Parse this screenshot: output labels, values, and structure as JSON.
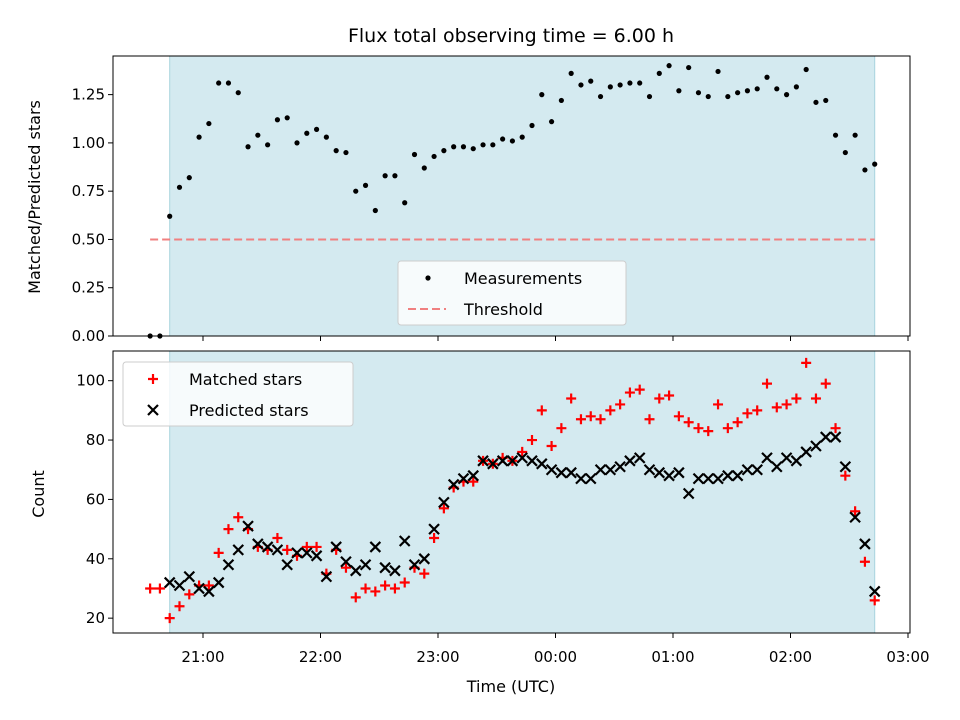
{
  "chart_data": [
    {
      "type": "scatter",
      "title": "Flux total observing time = 6.00 h",
      "xlabel": "",
      "ylabel": "Matched/Predicted stars",
      "ylim": [
        0,
        1.45
      ],
      "yticks": [
        "0.00",
        "0.25",
        "0.50",
        "0.75",
        "1.00",
        "1.25"
      ],
      "shaded_span": {
        "start": "20:43",
        "end": "02:43",
        "color": "#d4eaf0"
      },
      "legend": {
        "placement": "lower center",
        "entries": [
          "Measurements",
          "Threshold"
        ]
      },
      "series": [
        {
          "name": "Measurements",
          "marker": "dot",
          "color": "#000000",
          "points": [
            [
              "20:33",
              0.0
            ],
            [
              "20:38",
              0.0
            ],
            [
              "20:43",
              0.62
            ],
            [
              "20:48",
              0.77
            ],
            [
              "20:53",
              0.82
            ],
            [
              "20:58",
              1.03
            ],
            [
              "21:03",
              1.1
            ],
            [
              "21:08",
              1.31
            ],
            [
              "21:13",
              1.31
            ],
            [
              "21:18",
              1.26
            ],
            [
              "21:23",
              0.98
            ],
            [
              "21:28",
              1.04
            ],
            [
              "21:33",
              0.99
            ],
            [
              "21:38",
              1.12
            ],
            [
              "21:43",
              1.13
            ],
            [
              "21:48",
              1.0
            ],
            [
              "21:53",
              1.05
            ],
            [
              "21:58",
              1.07
            ],
            [
              "22:03",
              1.03
            ],
            [
              "22:08",
              0.96
            ],
            [
              "22:13",
              0.95
            ],
            [
              "22:18",
              0.75
            ],
            [
              "22:23",
              0.78
            ],
            [
              "22:28",
              0.65
            ],
            [
              "22:33",
              0.83
            ],
            [
              "22:38",
              0.83
            ],
            [
              "22:43",
              0.69
            ],
            [
              "22:48",
              0.94
            ],
            [
              "22:53",
              0.87
            ],
            [
              "22:58",
              0.93
            ],
            [
              "23:03",
              0.96
            ],
            [
              "23:08",
              0.98
            ],
            [
              "23:13",
              0.98
            ],
            [
              "23:18",
              0.97
            ],
            [
              "23:23",
              0.99
            ],
            [
              "23:28",
              0.99
            ],
            [
              "23:33",
              1.02
            ],
            [
              "23:38",
              1.01
            ],
            [
              "23:43",
              1.03
            ],
            [
              "23:48",
              1.09
            ],
            [
              "23:53",
              1.25
            ],
            [
              "23:58",
              1.11
            ],
            [
              "00:03",
              1.22
            ],
            [
              "00:08",
              1.36
            ],
            [
              "00:13",
              1.3
            ],
            [
              "00:18",
              1.32
            ],
            [
              "00:23",
              1.24
            ],
            [
              "00:28",
              1.29
            ],
            [
              "00:33",
              1.3
            ],
            [
              "00:38",
              1.31
            ],
            [
              "00:43",
              1.31
            ],
            [
              "00:48",
              1.24
            ],
            [
              "00:53",
              1.36
            ],
            [
              "00:58",
              1.4
            ],
            [
              "01:03",
              1.27
            ],
            [
              "01:08",
              1.39
            ],
            [
              "01:13",
              1.26
            ],
            [
              "01:18",
              1.24
            ],
            [
              "01:23",
              1.37
            ],
            [
              "01:28",
              1.24
            ],
            [
              "01:33",
              1.26
            ],
            [
              "01:38",
              1.27
            ],
            [
              "01:43",
              1.28
            ],
            [
              "01:48",
              1.34
            ],
            [
              "01:53",
              1.28
            ],
            [
              "01:58",
              1.25
            ],
            [
              "02:03",
              1.29
            ],
            [
              "02:08",
              1.38
            ],
            [
              "02:13",
              1.21
            ],
            [
              "02:18",
              1.22
            ],
            [
              "02:23",
              1.04
            ],
            [
              "02:28",
              0.95
            ],
            [
              "02:33",
              1.04
            ],
            [
              "02:38",
              0.86
            ],
            [
              "02:43",
              0.89
            ]
          ]
        },
        {
          "name": "Threshold",
          "style": "dashed",
          "color": "#f08080",
          "points": [
            [
              "20:33",
              0.5
            ],
            [
              "02:43",
              0.5
            ]
          ]
        }
      ]
    },
    {
      "type": "scatter",
      "title": "",
      "xlabel": "Time (UTC)",
      "ylabel": "Count",
      "ylim": [
        15,
        110
      ],
      "yticks": [
        "20",
        "40",
        "60",
        "80",
        "100"
      ],
      "xticks": [
        "21:00",
        "22:00",
        "23:00",
        "00:00",
        "01:00",
        "02:00",
        "03:00"
      ],
      "shaded_span": {
        "start": "20:43",
        "end": "02:43",
        "color": "#d4eaf0"
      },
      "legend": {
        "placement": "upper left",
        "entries": [
          "Matched stars",
          "Predicted stars"
        ]
      },
      "series": [
        {
          "name": "Matched stars",
          "marker": "plus",
          "color": "#ff0000",
          "points": [
            [
              "20:33",
              30
            ],
            [
              "20:38",
              30
            ],
            [
              "20:43",
              20
            ],
            [
              "20:48",
              24
            ],
            [
              "20:53",
              28
            ],
            [
              "20:58",
              31
            ],
            [
              "21:03",
              31
            ],
            [
              "21:08",
              42
            ],
            [
              "21:13",
              50
            ],
            [
              "21:18",
              54
            ],
            [
              "21:23",
              50
            ],
            [
              "21:28",
              44
            ],
            [
              "21:33",
              43
            ],
            [
              "21:38",
              47
            ],
            [
              "21:43",
              43
            ],
            [
              "21:48",
              41
            ],
            [
              "21:53",
              44
            ],
            [
              "21:58",
              44
            ],
            [
              "22:03",
              35
            ],
            [
              "22:08",
              43
            ],
            [
              "22:13",
              37
            ],
            [
              "22:18",
              27
            ],
            [
              "22:23",
              30
            ],
            [
              "22:28",
              29
            ],
            [
              "22:33",
              31
            ],
            [
              "22:38",
              30
            ],
            [
              "22:43",
              32
            ],
            [
              "22:48",
              37
            ],
            [
              "22:53",
              35
            ],
            [
              "22:58",
              47
            ],
            [
              "23:03",
              57
            ],
            [
              "23:08",
              64
            ],
            [
              "23:13",
              66
            ],
            [
              "23:18",
              66
            ],
            [
              "23:23",
              73
            ],
            [
              "23:28",
              72
            ],
            [
              "23:33",
              74
            ],
            [
              "23:38",
              73
            ],
            [
              "23:43",
              76
            ],
            [
              "23:48",
              80
            ],
            [
              "23:53",
              90
            ],
            [
              "23:58",
              78
            ],
            [
              "00:03",
              84
            ],
            [
              "00:08",
              94
            ],
            [
              "00:13",
              87
            ],
            [
              "00:18",
              88
            ],
            [
              "00:23",
              87
            ],
            [
              "00:28",
              90
            ],
            [
              "00:33",
              92
            ],
            [
              "00:38",
              96
            ],
            [
              "00:43",
              97
            ],
            [
              "00:48",
              87
            ],
            [
              "00:53",
              94
            ],
            [
              "00:58",
              95
            ],
            [
              "01:03",
              88
            ],
            [
              "01:08",
              86
            ],
            [
              "01:13",
              84
            ],
            [
              "01:18",
              83
            ],
            [
              "01:23",
              92
            ],
            [
              "01:28",
              84
            ],
            [
              "01:33",
              86
            ],
            [
              "01:38",
              89
            ],
            [
              "01:43",
              90
            ],
            [
              "01:48",
              99
            ],
            [
              "01:53",
              91
            ],
            [
              "01:58",
              92
            ],
            [
              "02:03",
              94
            ],
            [
              "02:08",
              106
            ],
            [
              "02:13",
              94
            ],
            [
              "02:18",
              99
            ],
            [
              "02:23",
              84
            ],
            [
              "02:28",
              68
            ],
            [
              "02:33",
              56
            ],
            [
              "02:38",
              39
            ],
            [
              "02:43",
              26
            ]
          ]
        },
        {
          "name": "Predicted stars",
          "marker": "x",
          "color": "#000000",
          "points": [
            [
              "20:43",
              32
            ],
            [
              "20:48",
              31
            ],
            [
              "20:53",
              34
            ],
            [
              "20:58",
              30
            ],
            [
              "21:03",
              29
            ],
            [
              "21:08",
              32
            ],
            [
              "21:13",
              38
            ],
            [
              "21:18",
              43
            ],
            [
              "21:23",
              51
            ],
            [
              "21:28",
              45
            ],
            [
              "21:33",
              44
            ],
            [
              "21:38",
              43
            ],
            [
              "21:43",
              38
            ],
            [
              "21:48",
              42
            ],
            [
              "21:53",
              42
            ],
            [
              "21:58",
              41
            ],
            [
              "22:03",
              34
            ],
            [
              "22:08",
              44
            ],
            [
              "22:13",
              39
            ],
            [
              "22:18",
              36
            ],
            [
              "22:23",
              38
            ],
            [
              "22:28",
              44
            ],
            [
              "22:33",
              37
            ],
            [
              "22:38",
              36
            ],
            [
              "22:43",
              46
            ],
            [
              "22:48",
              38
            ],
            [
              "22:53",
              40
            ],
            [
              "22:58",
              50
            ],
            [
              "23:03",
              59
            ],
            [
              "23:08",
              65
            ],
            [
              "23:13",
              67
            ],
            [
              "23:18",
              68
            ],
            [
              "23:23",
              73
            ],
            [
              "23:28",
              72
            ],
            [
              "23:33",
              73
            ],
            [
              "23:38",
              73
            ],
            [
              "23:43",
              74
            ],
            [
              "23:48",
              73
            ],
            [
              "23:53",
              72
            ],
            [
              "23:58",
              70
            ],
            [
              "00:03",
              69
            ],
            [
              "00:08",
              69
            ],
            [
              "00:13",
              67
            ],
            [
              "00:18",
              67
            ],
            [
              "00:23",
              70
            ],
            [
              "00:28",
              70
            ],
            [
              "00:33",
              71
            ],
            [
              "00:38",
              73
            ],
            [
              "00:43",
              74
            ],
            [
              "00:48",
              70
            ],
            [
              "00:53",
              69
            ],
            [
              "00:58",
              68
            ],
            [
              "01:03",
              69
            ],
            [
              "01:08",
              62
            ],
            [
              "01:13",
              67
            ],
            [
              "01:18",
              67
            ],
            [
              "01:23",
              67
            ],
            [
              "01:28",
              68
            ],
            [
              "01:33",
              68
            ],
            [
              "01:38",
              70
            ],
            [
              "01:43",
              70
            ],
            [
              "01:48",
              74
            ],
            [
              "01:53",
              71
            ],
            [
              "01:58",
              74
            ],
            [
              "02:03",
              73
            ],
            [
              "02:08",
              76
            ],
            [
              "02:13",
              78
            ],
            [
              "02:18",
              81
            ],
            [
              "02:23",
              81
            ],
            [
              "02:28",
              71
            ],
            [
              "02:33",
              54
            ],
            [
              "02:38",
              45
            ],
            [
              "02:43",
              29
            ]
          ]
        }
      ]
    }
  ]
}
